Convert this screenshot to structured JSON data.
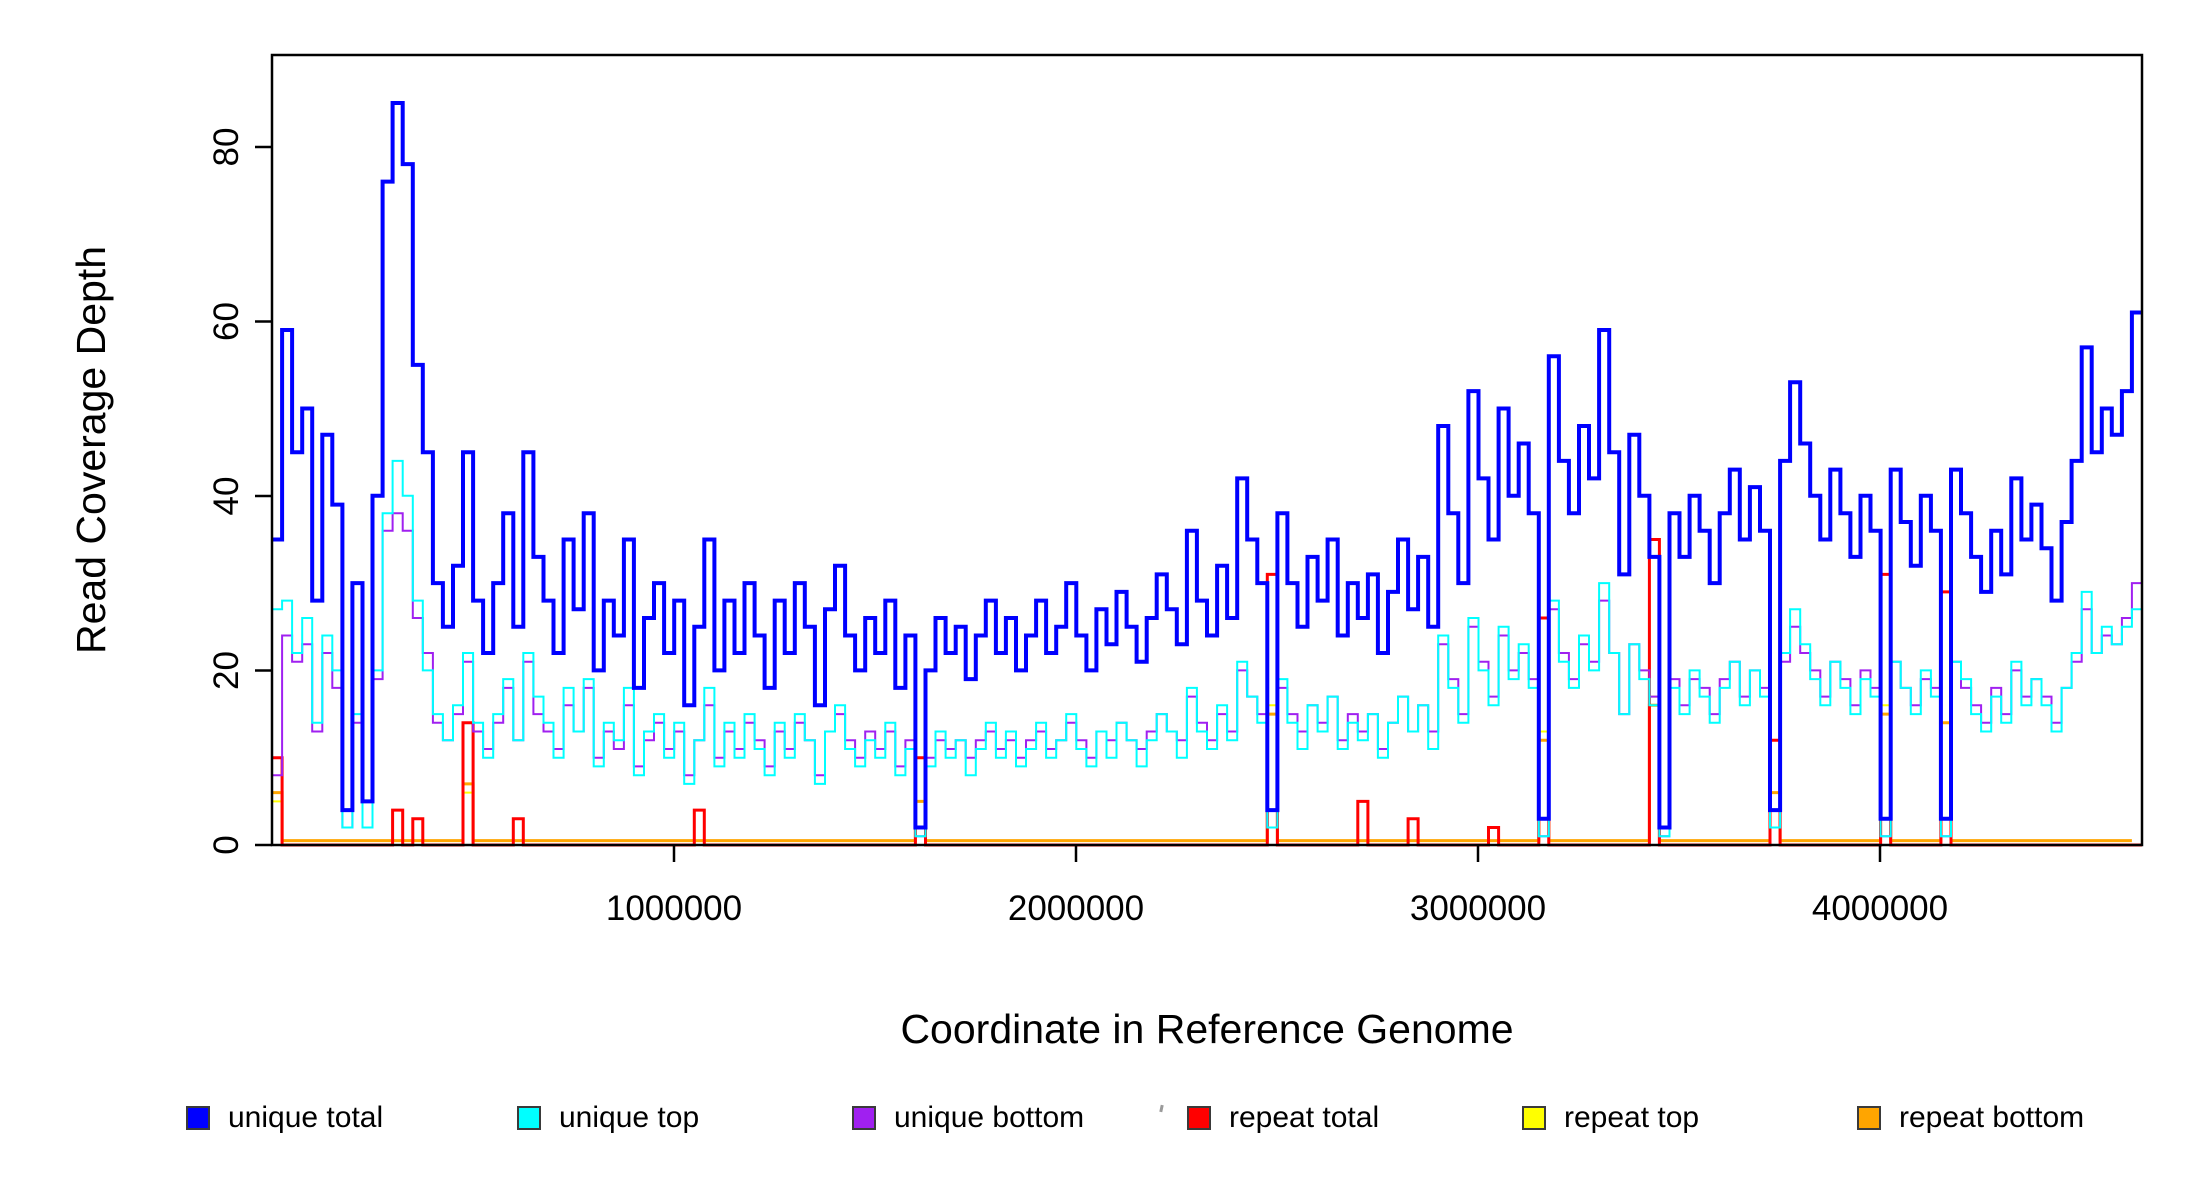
{
  "figure": {
    "title": "",
    "y_axis_label": "Read Coverage Depth",
    "x_axis_label": "Coordinate in Reference Genome",
    "background_color": "#ffffff",
    "axis_color": "#000000"
  },
  "chart_data": {
    "type": "line",
    "subtype": "step",
    "title": "",
    "xlabel": "Coordinate in Reference Genome",
    "ylabel": "Read Coverage Depth",
    "grid": false,
    "legend_position": "bottom",
    "xlim": [
      0,
      4650000
    ],
    "ylim": [
      0,
      90
    ],
    "bin_size_bp": 25000,
    "x_start": 0,
    "x_tick_values": [
      1000000,
      2000000,
      3000000,
      4000000
    ],
    "x_tick_labels": [
      "1000000",
      "2000000",
      "3000000",
      "4000000"
    ],
    "y_tick_values": [
      0,
      20,
      40,
      60,
      80
    ],
    "y_tick_labels": [
      "0",
      "20",
      "40",
      "60",
      "80"
    ],
    "series": [
      {
        "name": "unique total",
        "color": "#0000FF",
        "line_width": 4,
        "values": [
          35,
          59,
          45,
          50,
          28,
          47,
          39,
          4,
          30,
          5,
          40,
          76,
          85,
          78,
          55,
          45,
          30,
          25,
          32,
          45,
          28,
          22,
          30,
          38,
          25,
          45,
          33,
          28,
          22,
          35,
          27,
          38,
          20,
          28,
          24,
          35,
          18,
          26,
          30,
          22,
          28,
          16,
          25,
          35,
          20,
          28,
          22,
          30,
          24,
          18,
          28,
          22,
          30,
          25,
          16,
          27,
          32,
          24,
          20,
          26,
          22,
          28,
          18,
          24,
          2,
          20,
          26,
          22,
          25,
          19,
          24,
          28,
          22,
          26,
          20,
          24,
          28,
          22,
          25,
          30,
          24,
          20,
          27,
          23,
          29,
          25,
          21,
          26,
          31,
          27,
          23,
          36,
          28,
          24,
          32,
          26,
          42,
          35,
          30,
          4,
          38,
          30,
          25,
          33,
          28,
          35,
          24,
          30,
          26,
          31,
          22,
          29,
          35,
          27,
          33,
          25,
          48,
          38,
          30,
          52,
          42,
          35,
          50,
          40,
          46,
          38,
          3,
          56,
          44,
          38,
          48,
          42,
          59,
          45,
          31,
          47,
          40,
          33,
          2,
          38,
          33,
          40,
          36,
          30,
          38,
          43,
          35,
          41,
          36,
          4,
          44,
          53,
          46,
          40,
          35,
          43,
          38,
          33,
          40,
          36,
          3,
          43,
          37,
          32,
          40,
          36,
          3,
          43,
          38,
          33,
          29,
          36,
          31,
          42,
          35,
          39,
          34,
          28,
          37,
          44,
          57,
          45,
          50,
          47,
          52,
          61
        ]
      },
      {
        "name": "unique top",
        "color": "#00FFFF",
        "line_width": 2,
        "values": [
          27,
          28,
          22,
          26,
          14,
          24,
          20,
          2,
          15,
          2,
          20,
          38,
          44,
          40,
          28,
          20,
          15,
          12,
          16,
          22,
          14,
          10,
          15,
          19,
          12,
          22,
          17,
          14,
          10,
          18,
          13,
          19,
          9,
          14,
          12,
          18,
          8,
          13,
          15,
          10,
          14,
          7,
          12,
          18,
          9,
          14,
          10,
          15,
          11,
          8,
          14,
          10,
          15,
          12,
          7,
          13,
          16,
          11,
          9,
          12,
          10,
          14,
          8,
          11,
          1,
          9,
          13,
          10,
          12,
          8,
          11,
          14,
          10,
          13,
          9,
          11,
          14,
          10,
          12,
          15,
          11,
          9,
          13,
          10,
          14,
          12,
          9,
          12,
          15,
          13,
          10,
          18,
          13,
          11,
          16,
          12,
          21,
          17,
          14,
          2,
          19,
          14,
          11,
          16,
          13,
          17,
          11,
          14,
          12,
          15,
          10,
          14,
          17,
          13,
          16,
          11,
          24,
          18,
          14,
          26,
          20,
          16,
          25,
          19,
          23,
          18,
          1,
          28,
          21,
          18,
          24,
          20,
          30,
          22,
          15,
          23,
          19,
          16,
          1,
          18,
          15,
          20,
          17,
          14,
          18,
          21,
          16,
          20,
          17,
          2,
          22,
          27,
          23,
          19,
          16,
          21,
          18,
          15,
          19,
          17,
          1,
          21,
          18,
          15,
          20,
          17,
          1,
          21,
          19,
          15,
          13,
          17,
          14,
          21,
          16,
          19,
          16,
          13,
          18,
          22,
          29,
          22,
          25,
          23,
          25,
          27
        ]
      },
      {
        "name": "unique bottom",
        "color": "#A020F0",
        "line_width": 2,
        "values": [
          8,
          24,
          21,
          23,
          13,
          22,
          18,
          2,
          14,
          2,
          19,
          36,
          38,
          36,
          26,
          22,
          14,
          12,
          15,
          21,
          13,
          11,
          14,
          18,
          12,
          21,
          15,
          13,
          11,
          16,
          13,
          18,
          10,
          13,
          11,
          16,
          9,
          12,
          14,
          11,
          13,
          8,
          12,
          16,
          10,
          13,
          11,
          14,
          12,
          9,
          13,
          11,
          14,
          12,
          8,
          13,
          15,
          12,
          10,
          13,
          11,
          13,
          9,
          12,
          1,
          10,
          12,
          11,
          12,
          10,
          12,
          13,
          11,
          12,
          10,
          12,
          13,
          11,
          12,
          14,
          12,
          10,
          13,
          12,
          14,
          12,
          11,
          13,
          15,
          13,
          12,
          17,
          14,
          12,
          15,
          13,
          20,
          17,
          15,
          2,
          18,
          15,
          13,
          16,
          14,
          17,
          12,
          15,
          13,
          15,
          11,
          14,
          17,
          13,
          16,
          13,
          23,
          19,
          15,
          25,
          21,
          17,
          24,
          20,
          22,
          19,
          1,
          27,
          22,
          19,
          23,
          21,
          28,
          22,
          15,
          23,
          20,
          17,
          1,
          19,
          16,
          19,
          18,
          15,
          19,
          21,
          17,
          20,
          18,
          2,
          21,
          25,
          22,
          20,
          17,
          21,
          19,
          16,
          20,
          18,
          1,
          21,
          18,
          16,
          19,
          18,
          1,
          21,
          18,
          16,
          14,
          18,
          15,
          20,
          17,
          19,
          17,
          14,
          18,
          21,
          27,
          22,
          24,
          23,
          26,
          30
        ]
      },
      {
        "name": "repeat total",
        "color": "#FF0000",
        "line_width": 3,
        "values": [
          10,
          0,
          0,
          0,
          0,
          0,
          0,
          0,
          0,
          0,
          0,
          0,
          4,
          0,
          3,
          0,
          0,
          0,
          0,
          14,
          0,
          0,
          0,
          0,
          3,
          0,
          0,
          0,
          0,
          0,
          0,
          0,
          0,
          0,
          0,
          0,
          0,
          0,
          0,
          0,
          0,
          0,
          4,
          0,
          0,
          0,
          0,
          0,
          0,
          0,
          0,
          0,
          0,
          0,
          0,
          0,
          0,
          0,
          0,
          0,
          0,
          0,
          0,
          0,
          10,
          0,
          0,
          0,
          0,
          0,
          0,
          0,
          0,
          0,
          0,
          0,
          0,
          0,
          0,
          0,
          0,
          0,
          0,
          0,
          0,
          0,
          0,
          0,
          0,
          0,
          0,
          0,
          0,
          0,
          0,
          0,
          0,
          0,
          0,
          31,
          0,
          0,
          0,
          0,
          0,
          0,
          0,
          0,
          5,
          0,
          0,
          0,
          0,
          3,
          0,
          0,
          0,
          0,
          0,
          0,
          0,
          2,
          0,
          0,
          0,
          0,
          26,
          0,
          0,
          0,
          0,
          0,
          0,
          0,
          0,
          0,
          0,
          35,
          0,
          0,
          0,
          0,
          0,
          0,
          0,
          0,
          0,
          0,
          0,
          12,
          0,
          0,
          0,
          0,
          0,
          0,
          0,
          0,
          0,
          0,
          31,
          0,
          0,
          0,
          0,
          0,
          29,
          0,
          0,
          0,
          0,
          0,
          0,
          0,
          0,
          0,
          0,
          0,
          0,
          0,
          0,
          0,
          0,
          0,
          0,
          0
        ]
      },
      {
        "name": "repeat top",
        "color": "#FFFF00",
        "line_width": 2,
        "values": [
          5,
          0,
          0,
          0,
          0,
          0,
          0,
          0,
          0,
          0,
          0,
          0,
          0,
          0,
          0,
          0,
          0,
          0,
          0,
          6,
          0,
          0,
          0,
          0,
          0,
          0,
          0,
          0,
          0,
          0,
          0,
          0,
          0,
          0,
          0,
          0,
          0,
          0,
          0,
          0,
          0,
          0,
          0,
          0,
          0,
          0,
          0,
          0,
          0,
          0,
          0,
          0,
          0,
          0,
          0,
          0,
          0,
          0,
          0,
          0,
          0,
          0,
          0,
          0,
          5,
          0,
          0,
          0,
          0,
          0,
          0,
          0,
          0,
          0,
          0,
          0,
          0,
          0,
          0,
          0,
          0,
          0,
          0,
          0,
          0,
          0,
          0,
          0,
          0,
          0,
          0,
          0,
          0,
          0,
          0,
          0,
          0,
          0,
          0,
          16,
          0,
          0,
          0,
          0,
          0,
          0,
          0,
          0,
          0,
          0,
          0,
          0,
          0,
          0,
          0,
          0,
          0,
          0,
          0,
          0,
          0,
          0,
          0,
          0,
          0,
          0,
          13,
          0,
          0,
          0,
          0,
          0,
          0,
          0,
          0,
          0,
          0,
          17,
          0,
          0,
          0,
          0,
          0,
          0,
          0,
          0,
          0,
          0,
          0,
          6,
          0,
          0,
          0,
          0,
          0,
          0,
          0,
          0,
          0,
          0,
          16,
          0,
          0,
          0,
          0,
          0,
          14,
          0,
          0,
          0,
          0,
          0,
          0,
          0,
          0,
          0,
          0,
          0,
          0,
          0,
          0,
          0,
          0,
          0,
          0,
          0
        ]
      },
      {
        "name": "repeat bottom",
        "color": "#FFA500",
        "line_width": 3,
        "values": [
          6,
          0.5,
          0.5,
          0.5,
          0.5,
          0.5,
          0.5,
          0.5,
          0.5,
          0.5,
          0.5,
          0.5,
          0.5,
          0.5,
          0.5,
          0.5,
          0.5,
          0.5,
          0.5,
          7,
          0.5,
          0.5,
          0.5,
          0.5,
          0.5,
          0.5,
          0.5,
          0.5,
          0.5,
          0.5,
          0.5,
          0.5,
          0.5,
          0.5,
          0.5,
          0.5,
          0.5,
          0.5,
          0.5,
          0.5,
          0.5,
          0.5,
          0.5,
          0.5,
          0.5,
          0.5,
          0.5,
          0.5,
          0.5,
          0.5,
          0.5,
          0.5,
          0.5,
          0.5,
          0.5,
          0.5,
          0.5,
          0.5,
          0.5,
          0.5,
          0.5,
          0.5,
          0.5,
          0.5,
          5,
          0.5,
          0.5,
          0.5,
          0.5,
          0.5,
          0.5,
          0.5,
          0.5,
          0.5,
          0.5,
          0.5,
          0.5,
          0.5,
          0.5,
          0.5,
          0.5,
          0.5,
          0.5,
          0.5,
          0.5,
          0.5,
          0.5,
          0.5,
          0.5,
          0.5,
          0.5,
          0.5,
          0.5,
          0.5,
          0.5,
          0.5,
          0.5,
          0.5,
          0.5,
          15,
          0.5,
          0.5,
          0.5,
          0.5,
          0.5,
          0.5,
          0.5,
          0.5,
          0.5,
          0.5,
          0.5,
          0.5,
          0.5,
          0.5,
          0.5,
          0.5,
          0.5,
          0.5,
          0.5,
          0.5,
          0.5,
          0.5,
          0.5,
          0.5,
          0.5,
          0.5,
          12,
          0.5,
          0.5,
          0.5,
          0.5,
          0.5,
          0.5,
          0.5,
          0.5,
          0.5,
          0.5,
          16,
          0.5,
          0.5,
          0.5,
          0.5,
          0.5,
          0.5,
          0.5,
          0.5,
          0.5,
          0.5,
          0.5,
          6,
          0.5,
          0.5,
          0.5,
          0.5,
          0.5,
          0.5,
          0.5,
          0.5,
          0.5,
          0.5,
          15,
          0.5,
          0.5,
          0.5,
          0.5,
          0.5,
          14,
          0.5,
          0.5,
          0.5,
          0.5,
          0.5,
          0.5,
          0.5,
          0.5,
          0.5,
          0.5,
          0.5,
          0.5,
          0.5,
          0.5,
          0.5,
          0.5,
          0.5,
          0.5
        ]
      }
    ]
  }
}
